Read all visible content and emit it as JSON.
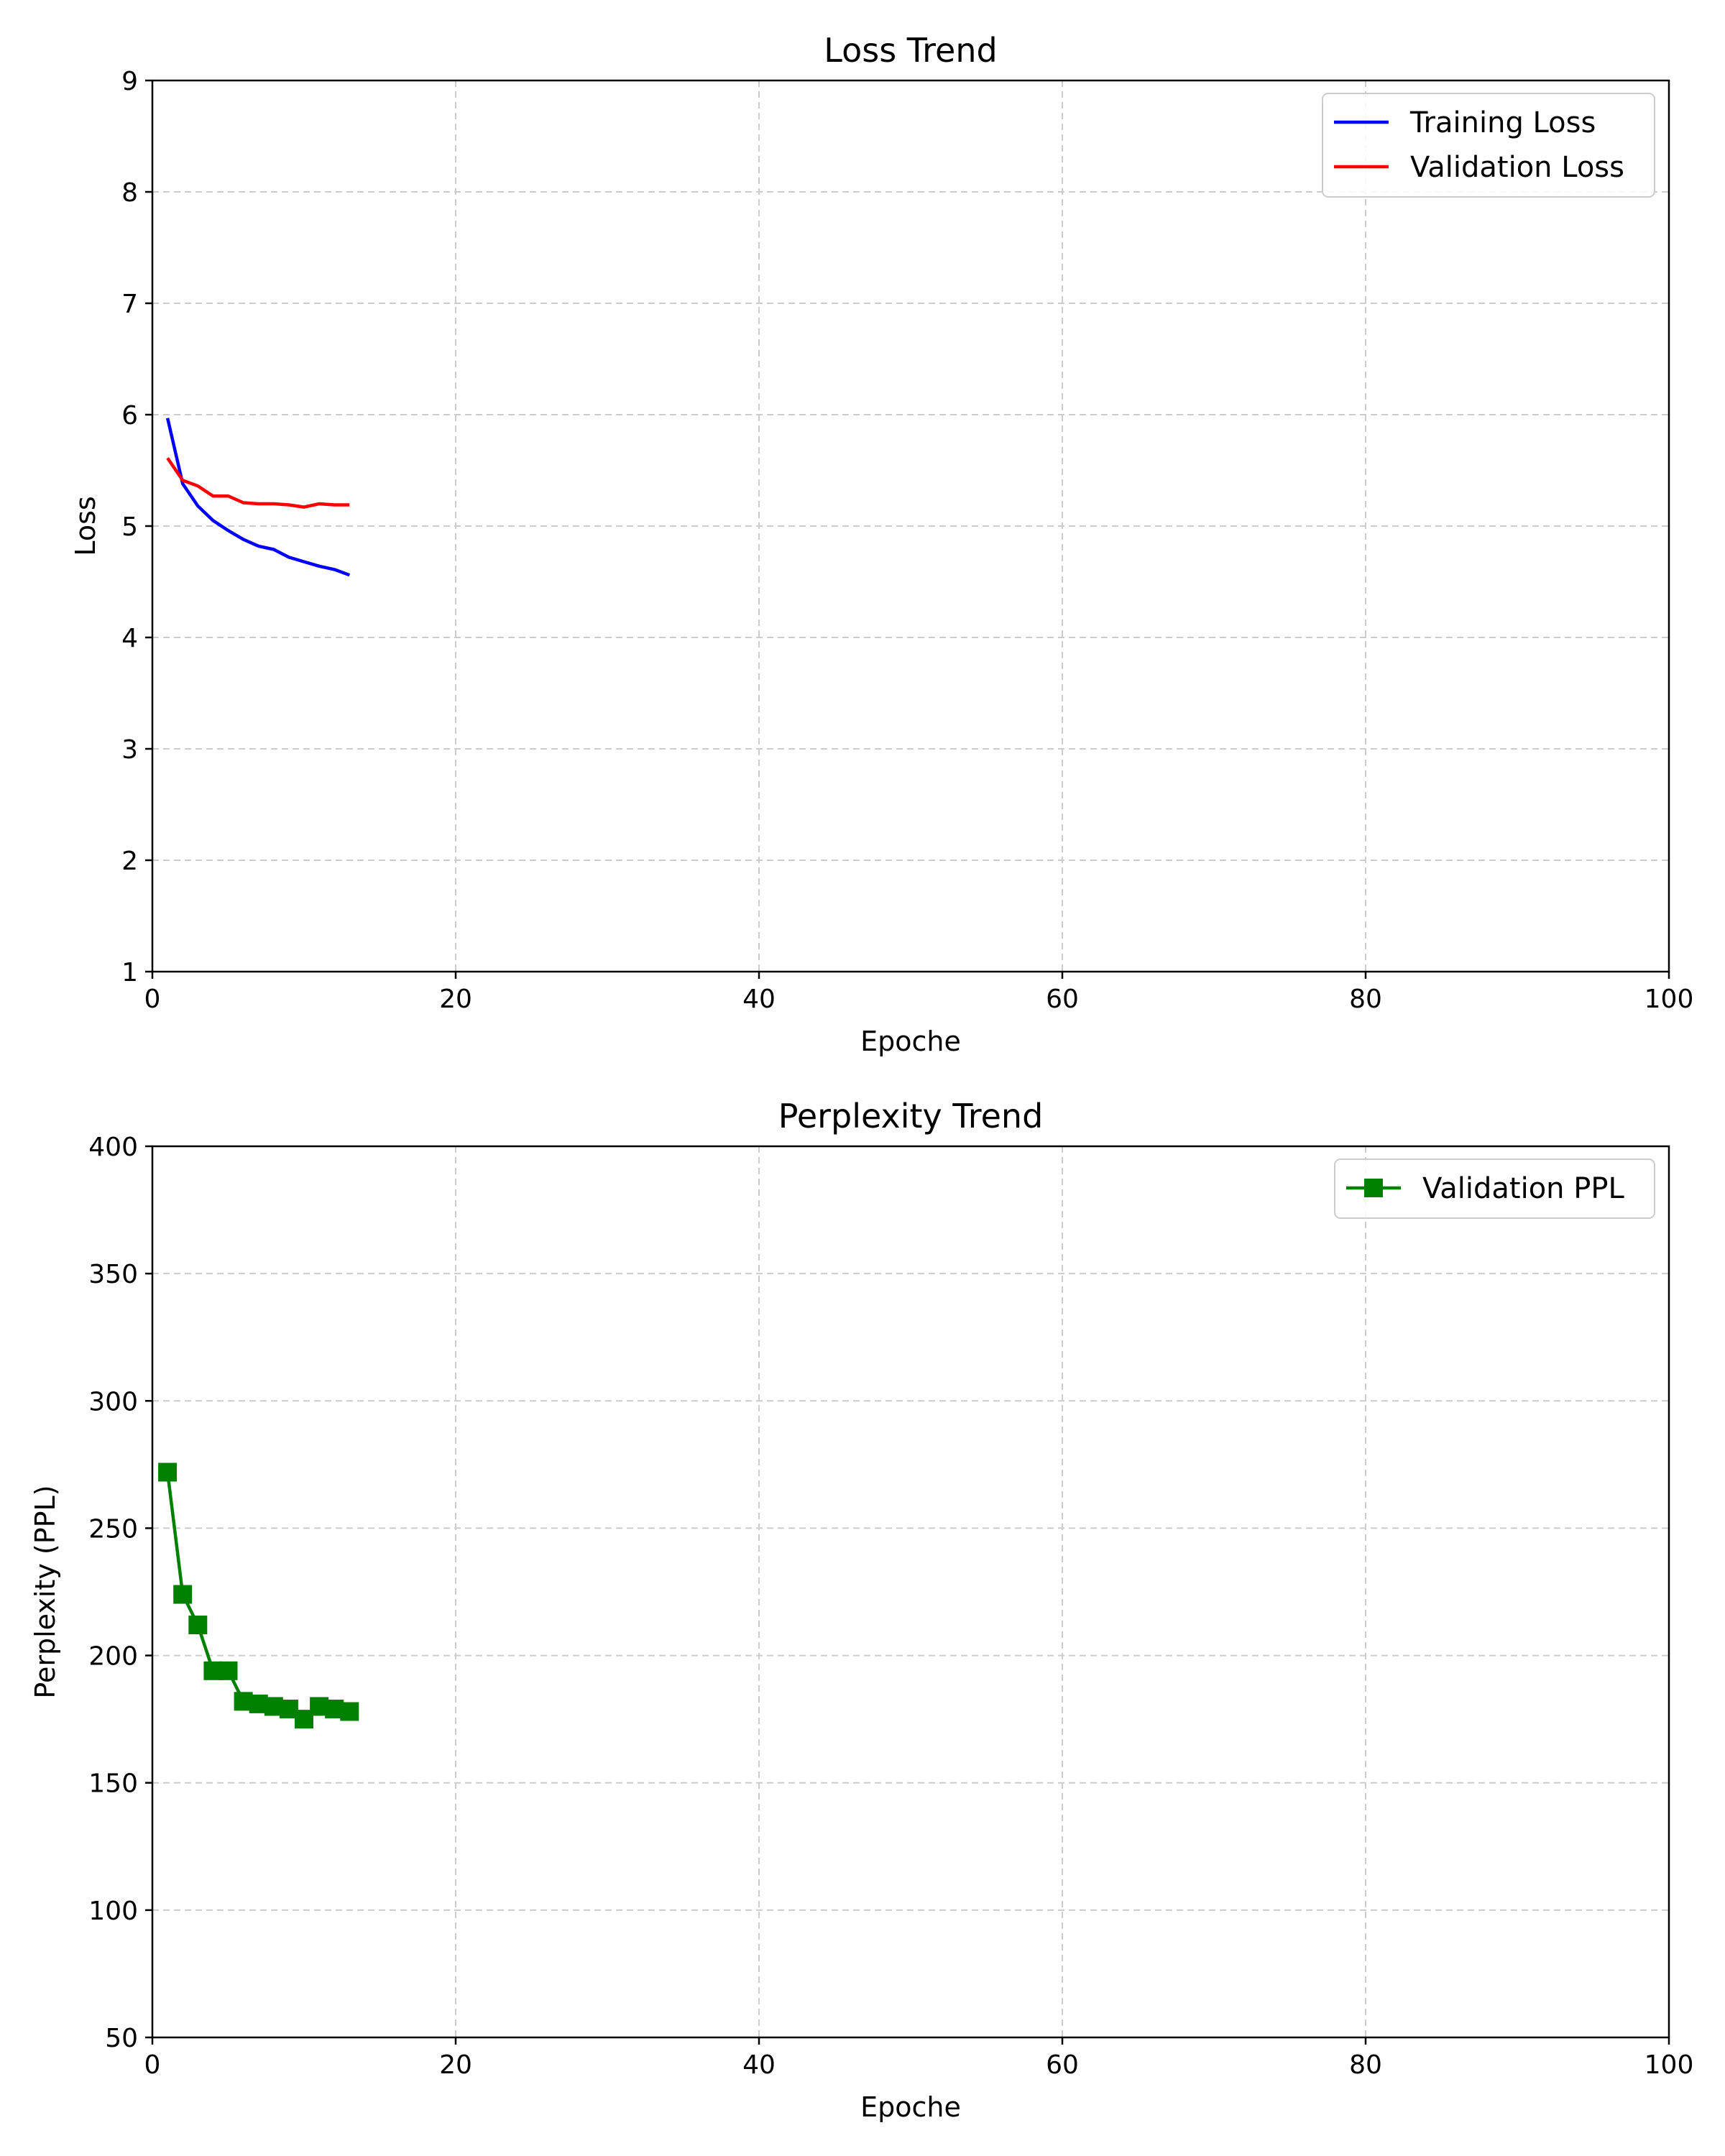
{
  "chart_data": [
    {
      "type": "line",
      "title": "Loss Trend",
      "xlabel": "Epoche",
      "ylabel": "Loss",
      "xlim": [
        0,
        100
      ],
      "ylim": [
        1,
        9
      ],
      "xticks": [
        0,
        20,
        40,
        60,
        80,
        100
      ],
      "yticks": [
        1,
        2,
        3,
        4,
        5,
        6,
        7,
        8,
        9
      ],
      "grid": true,
      "legend_position": "top-right",
      "x": [
        1,
        2,
        3,
        4,
        5,
        6,
        7,
        8,
        9,
        10,
        11,
        12,
        13
      ],
      "series": [
        {
          "name": "Training Loss",
          "color": "#0000ff",
          "marker": "none",
          "values": [
            5.97,
            5.38,
            5.18,
            5.05,
            4.96,
            4.88,
            4.82,
            4.79,
            4.72,
            4.68,
            4.64,
            4.61,
            4.56
          ]
        },
        {
          "name": "Validation Loss",
          "color": "#ff0000",
          "marker": "none",
          "values": [
            5.61,
            5.41,
            5.36,
            5.27,
            5.27,
            5.21,
            5.2,
            5.2,
            5.19,
            5.17,
            5.2,
            5.19,
            5.19
          ]
        }
      ]
    },
    {
      "type": "line",
      "title": "Perplexity Trend",
      "xlabel": "Epoche",
      "ylabel": "Perplexity (PPL)",
      "xlim": [
        0,
        100
      ],
      "ylim": [
        50,
        400
      ],
      "xticks": [
        0,
        20,
        40,
        60,
        80,
        100
      ],
      "yticks": [
        50,
        100,
        150,
        200,
        250,
        300,
        350,
        400
      ],
      "grid": true,
      "legend_position": "top-right",
      "x": [
        1,
        2,
        3,
        4,
        5,
        6,
        7,
        8,
        9,
        10,
        11,
        12,
        13
      ],
      "series": [
        {
          "name": "Validation PPL",
          "color": "#008000",
          "marker": "square",
          "values": [
            272,
            224,
            212,
            194,
            194,
            182,
            181,
            180,
            179,
            175,
            180,
            179,
            178
          ]
        }
      ]
    }
  ]
}
